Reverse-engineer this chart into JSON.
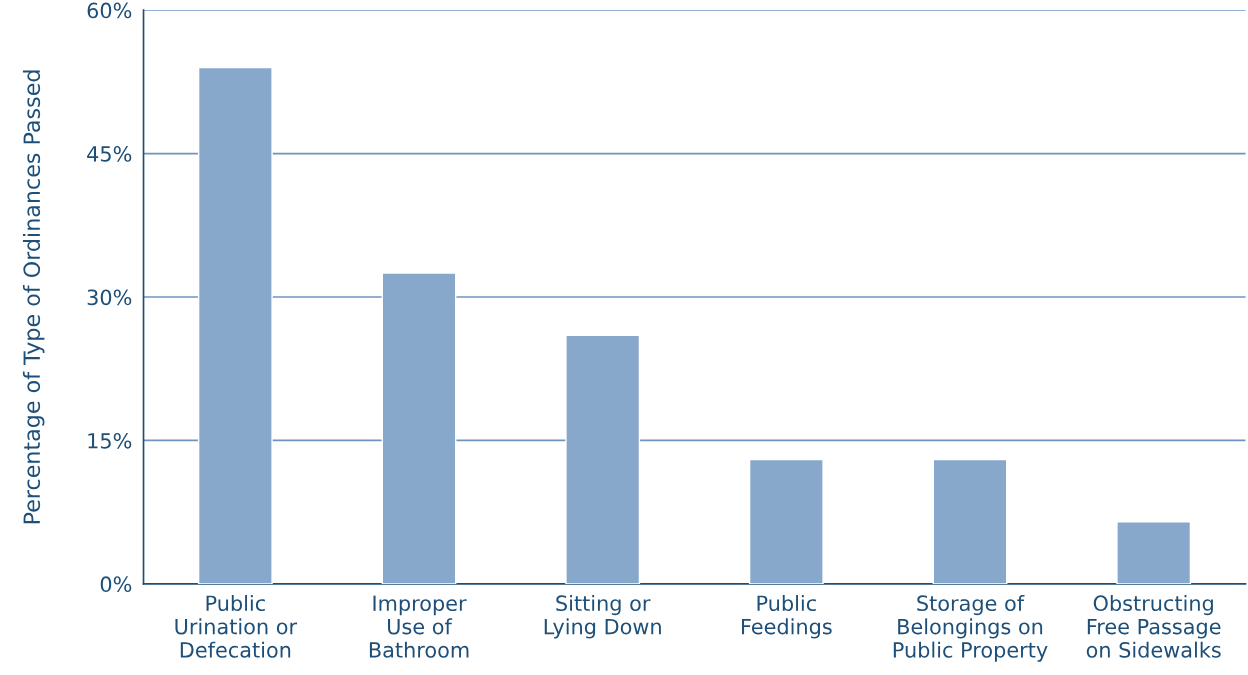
{
  "chart_data": {
    "type": "bar",
    "ylabel": "Percentage of Type of Ordinances Passed",
    "categories": [
      "Public\nUrination or\nDefecation",
      "Improper\nUse of\nBathroom",
      "Sitting or\nLying Down",
      "Public\nFeedings",
      "Storage of\nBelongings on\nPublic Property",
      "Obstructing\nFree Passage\non Sidewalks"
    ],
    "values": [
      54,
      32.5,
      26,
      13,
      13,
      6.5
    ],
    "color": "#87a8cb",
    "ylim": [
      0,
      60
    ],
    "yticks": [
      {
        "value": 0,
        "label": "0%"
      },
      {
        "value": 15,
        "label": "15%"
      },
      {
        "value": 30,
        "label": "30%"
      },
      {
        "value": 45,
        "label": "45%"
      },
      {
        "value": 60,
        "label": "60%"
      }
    ],
    "grid": "y"
  }
}
